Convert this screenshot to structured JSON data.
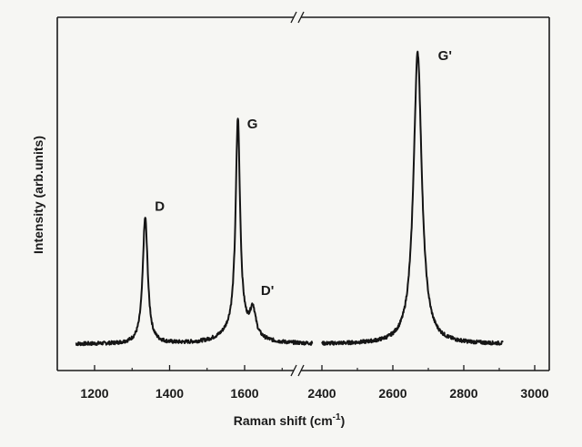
{
  "chart_data": {
    "type": "line",
    "xlabel": "Raman shift (cm",
    "xlabel_sup": "-1",
    "xlabel_close": ")",
    "ylabel": "Intensity (arb.units)",
    "grid": false,
    "legend": "none",
    "axis_break": true,
    "colors": {
      "line": "#151515",
      "axis": "#1a1a1a",
      "background": "#f6f6f3"
    },
    "segments": [
      {
        "name": "left",
        "xlim": [
          1150,
          1820
        ],
        "ticks": [
          1200,
          1400,
          1600
        ],
        "data_xlim": [
          1150,
          1780
        ]
      },
      {
        "name": "right",
        "xlim": [
          2400,
          3000
        ],
        "ticks": [
          2400,
          2600,
          2800,
          3000
        ],
        "data_xlim": [
          2400,
          2910
        ]
      }
    ],
    "ylim": [
      0,
      1.0
    ],
    "baseline": 0.06,
    "peaks": [
      {
        "label": "D",
        "center": 1335,
        "height": 0.42,
        "width": 8,
        "segment": 0
      },
      {
        "label": "G",
        "center": 1582,
        "height": 0.7,
        "width": 7,
        "segment": 0
      },
      {
        "label": "D'",
        "center": 1622,
        "height": 0.09,
        "width": 9,
        "segment": 0
      },
      {
        "label": "G'",
        "center": 2670,
        "height": 0.97,
        "width": 14,
        "segment": 1
      }
    ]
  }
}
